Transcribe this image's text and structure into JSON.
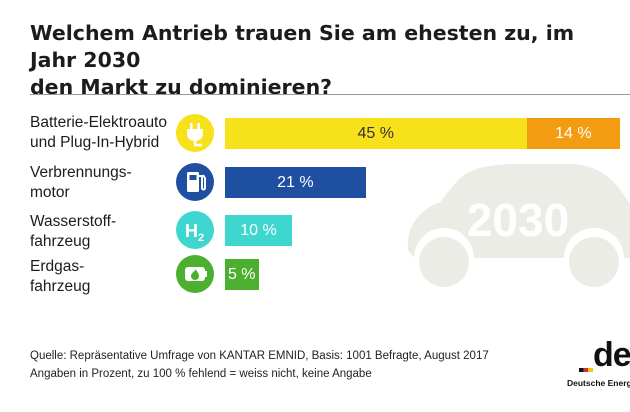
{
  "colors": {
    "yellow": "#f7e11b",
    "orange": "#f39c12",
    "blue": "#1f4fa0",
    "cyan": "#3fd6cf",
    "green": "#4caf2f",
    "car": "#ecece6"
  },
  "chart_data": {
    "type": "bar",
    "title": "Welchem Antrieb trauen Sie am ehesten zu, im Jahr 2030 den Markt zu dominieren?",
    "unit": "%",
    "xlim": [
      0,
      100
    ],
    "categories": [
      "Batterie-Elektroauto und Plug-In-Hybrid",
      "Verbrennungs-motor",
      "Wasserstoff-fahrzeug",
      "Erdgas-fahrzeug"
    ],
    "series": [
      {
        "name": "Batterie-Elektroauto",
        "values": [
          45,
          21,
          10,
          5
        ]
      },
      {
        "name": "Plug-In-Hybrid",
        "values": [
          14,
          0,
          0,
          0
        ]
      }
    ]
  },
  "title": {
    "line1": "Welchem Antrieb trauen Sie am ehesten zu, im Jahr 2030",
    "line2": "den Markt zu dominieren?"
  },
  "watermark": {
    "year": "2030"
  },
  "rows": [
    {
      "label_l1": "Batterie-Elektroauto",
      "label_l2": "und Plug-In-Hybrid",
      "icon": "plug-icon",
      "bars": [
        {
          "value": 45,
          "text": "45 %",
          "color": "#f7e11b",
          "text_color": "#333333"
        },
        {
          "value": 14,
          "text": "14 %",
          "color": "#f39c12",
          "text_color": "#ffffff"
        }
      ]
    },
    {
      "label_l1": "Verbrennungs-",
      "label_l2": "motor",
      "icon": "fuel-pump-icon",
      "bars": [
        {
          "value": 21,
          "text": "21 %",
          "color": "#1f4fa0",
          "text_color": "#ffffff"
        }
      ]
    },
    {
      "label_l1": "Wasserstoff-",
      "label_l2": "fahrzeug",
      "icon": "hydrogen-icon",
      "bars": [
        {
          "value": 10,
          "text": "10 %",
          "color": "#3fd6cf",
          "text_color": "#ffffff"
        }
      ]
    },
    {
      "label_l1": "Erdgas-",
      "label_l2": "fahrzeug",
      "icon": "gas-flame-icon",
      "bars": [
        {
          "value": 5,
          "text": "5 %",
          "color": "#4caf2f",
          "text_color": "#ffffff"
        }
      ]
    }
  ],
  "icon_labels": {
    "hydrogen": "H",
    "hydrogen_sub": "2"
  },
  "notes": {
    "source": "Quelle: Repräsentative Umfrage von KANTAR EMNID, Basis: 1001 Befragte, August 2017",
    "footnote": "Angaben in Prozent, zu 100 % fehlend = weiss nicht, keine Angabe"
  },
  "logo": {
    "mark": "de",
    "name": "Deutsche Energ"
  }
}
